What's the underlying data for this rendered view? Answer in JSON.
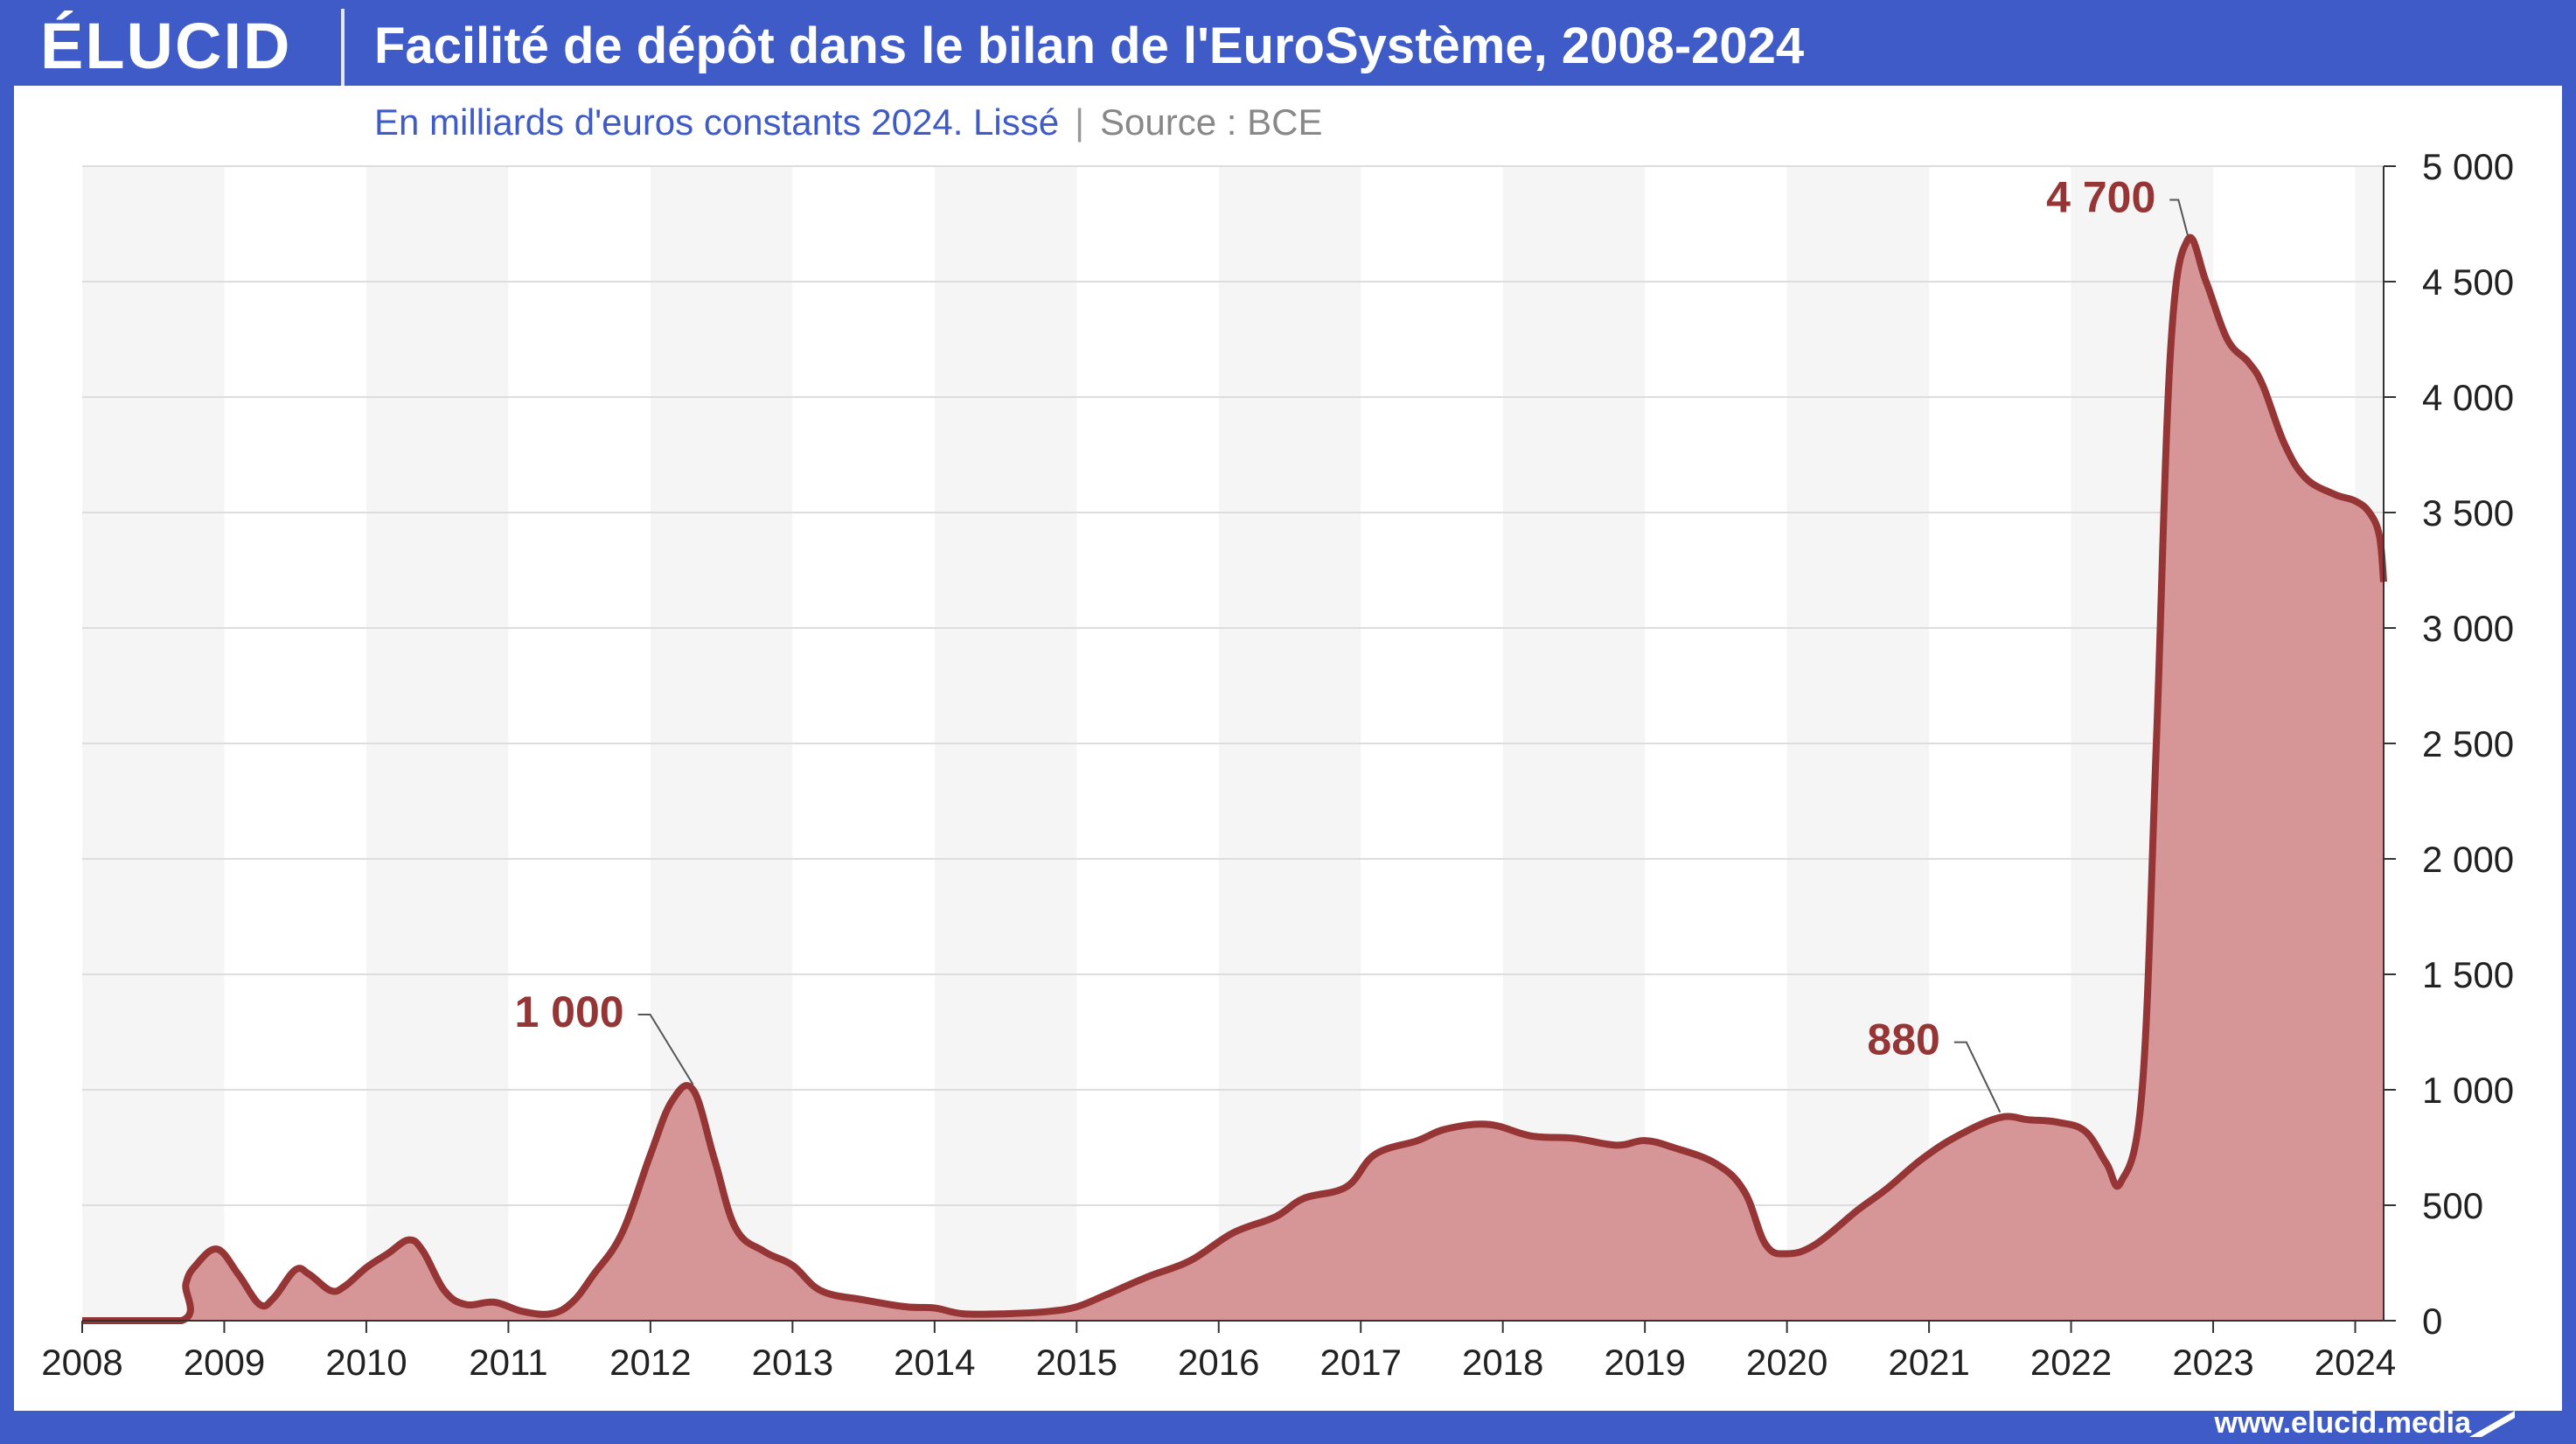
{
  "header": {
    "logo": "ÉLUCID",
    "title": "Facilité de dépôt dans le bilan de l'EuroSystème, 2008-2024"
  },
  "subtitle": "En milliards d'euros constants 2024. Lissé",
  "separator": "|",
  "source": "Source : BCE",
  "footer": {
    "url": "www.elucid.media"
  },
  "colors": {
    "frame": "#3f5bc8",
    "line": "#953535",
    "fill": "#d69596",
    "band": "#f5f5f5",
    "annotation": "#953535"
  },
  "chart_data": {
    "type": "area",
    "title": "Facilité de dépôt dans le bilan de l'EuroSystème, 2008-2024",
    "xlabel": "",
    "ylabel": "",
    "x_range": [
      2008,
      2024.2
    ],
    "ylim": [
      0,
      5000
    ],
    "y_axis_position": "right",
    "grid": true,
    "legend": "none",
    "x_ticks": [
      "2008",
      "2009",
      "2010",
      "2011",
      "2012",
      "2013",
      "2014",
      "2015",
      "2016",
      "2017",
      "2018",
      "2019",
      "2020",
      "2021",
      "2022",
      "2023",
      "2024"
    ],
    "y_ticks": [
      "0",
      "500",
      "1 000",
      "1 500",
      "2 000",
      "2 500",
      "3 000",
      "3 500",
      "4 000",
      "4 500",
      "5 000"
    ],
    "series": [
      {
        "points": [
          [
            2008.0,
            0
          ],
          [
            2008.7,
            0
          ],
          [
            2008.73,
            160
          ],
          [
            2008.8,
            240
          ],
          [
            2008.95,
            310
          ],
          [
            2009.1,
            200
          ],
          [
            2009.25,
            70
          ],
          [
            2009.35,
            100
          ],
          [
            2009.5,
            220
          ],
          [
            2009.6,
            200
          ],
          [
            2009.75,
            130
          ],
          [
            2009.85,
            150
          ],
          [
            2010.0,
            230
          ],
          [
            2010.15,
            290
          ],
          [
            2010.3,
            350
          ],
          [
            2010.4,
            300
          ],
          [
            2010.55,
            130
          ],
          [
            2010.7,
            70
          ],
          [
            2010.9,
            80
          ],
          [
            2011.1,
            40
          ],
          [
            2011.3,
            30
          ],
          [
            2011.45,
            80
          ],
          [
            2011.6,
            200
          ],
          [
            2011.8,
            380
          ],
          [
            2012.0,
            720
          ],
          [
            2012.15,
            950
          ],
          [
            2012.3,
            1000
          ],
          [
            2012.45,
            700
          ],
          [
            2012.6,
            400
          ],
          [
            2012.8,
            300
          ],
          [
            2013.0,
            240
          ],
          [
            2013.2,
            130
          ],
          [
            2013.5,
            90
          ],
          [
            2013.8,
            60
          ],
          [
            2014.0,
            55
          ],
          [
            2014.2,
            30
          ],
          [
            2014.5,
            30
          ],
          [
            2014.8,
            40
          ],
          [
            2015.0,
            60
          ],
          [
            2015.2,
            110
          ],
          [
            2015.5,
            190
          ],
          [
            2015.8,
            260
          ],
          [
            2016.1,
            380
          ],
          [
            2016.4,
            450
          ],
          [
            2016.6,
            530
          ],
          [
            2016.9,
            580
          ],
          [
            2017.1,
            720
          ],
          [
            2017.4,
            780
          ],
          [
            2017.6,
            830
          ],
          [
            2017.9,
            850
          ],
          [
            2018.2,
            800
          ],
          [
            2018.5,
            790
          ],
          [
            2018.8,
            760
          ],
          [
            2019.0,
            780
          ],
          [
            2019.2,
            750
          ],
          [
            2019.5,
            680
          ],
          [
            2019.7,
            560
          ],
          [
            2019.85,
            330
          ],
          [
            2020.0,
            290
          ],
          [
            2020.2,
            330
          ],
          [
            2020.5,
            480
          ],
          [
            2020.7,
            570
          ],
          [
            2020.95,
            700
          ],
          [
            2021.2,
            800
          ],
          [
            2021.5,
            880
          ],
          [
            2021.7,
            870
          ],
          [
            2021.9,
            860
          ],
          [
            2022.1,
            820
          ],
          [
            2022.25,
            680
          ],
          [
            2022.35,
            600
          ],
          [
            2022.5,
            1000
          ],
          [
            2022.6,
            2500
          ],
          [
            2022.7,
            4200
          ],
          [
            2022.82,
            4680
          ],
          [
            2022.95,
            4500
          ],
          [
            2023.1,
            4250
          ],
          [
            2023.25,
            4150
          ],
          [
            2023.35,
            4050
          ],
          [
            2023.5,
            3800
          ],
          [
            2023.65,
            3650
          ],
          [
            2023.85,
            3580
          ],
          [
            2024.0,
            3550
          ],
          [
            2024.1,
            3500
          ],
          [
            2024.17,
            3400
          ],
          [
            2024.2,
            3200
          ]
        ]
      }
    ],
    "annotations": [
      {
        "text": "1 000",
        "x": 2012.3,
        "y": 1000
      },
      {
        "text": "880",
        "x": 2021.5,
        "y": 880
      },
      {
        "text": "4 700",
        "x": 2022.82,
        "y": 4680
      }
    ]
  }
}
